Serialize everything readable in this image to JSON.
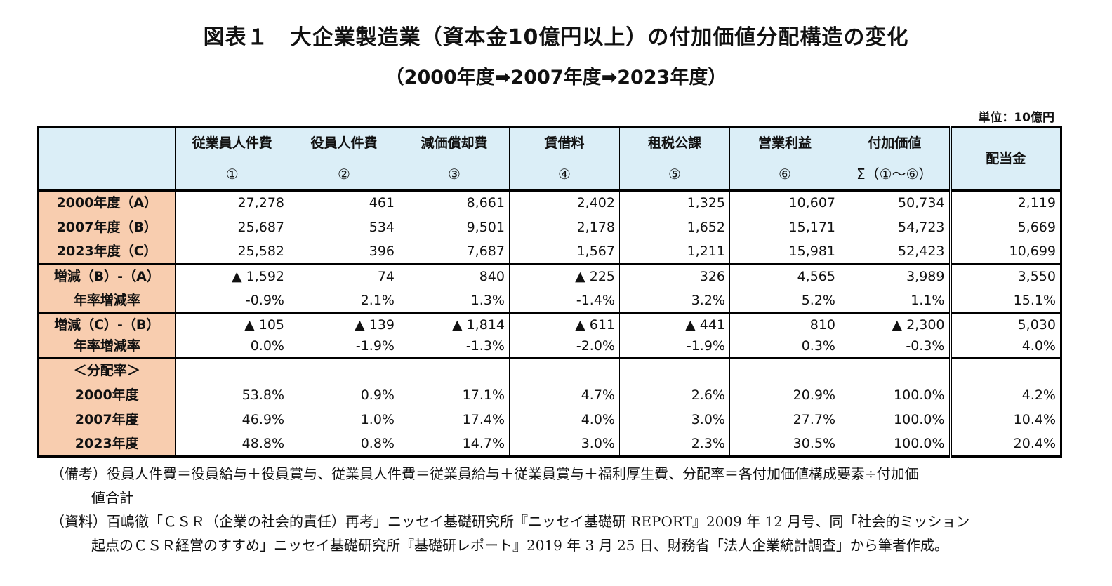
{
  "title": "図表１　大企業製造業（資本金10億円以上）の付加価値分配構造の変化",
  "subtitle": "（2000年度➡2007年度➡2023年度）",
  "unit": "単位：10億円",
  "columns": [
    {
      "name": "従業員人件費",
      "sub": "①"
    },
    {
      "name": "役員人件費",
      "sub": "②"
    },
    {
      "name": "減価償却費",
      "sub": "③"
    },
    {
      "name": "賃借料",
      "sub": "④"
    },
    {
      "name": "租税公課",
      "sub": "⑤"
    },
    {
      "name": "営業利益",
      "sub": "⑥"
    },
    {
      "name": "付加価値",
      "sub": "Σ（①～⑥）"
    },
    {
      "name": "配当金",
      "sub": ""
    }
  ],
  "rows": [
    {
      "label": "2000年度（A）",
      "values": [
        "27,278",
        "461",
        "8,661",
        "2,402",
        "1,325",
        "10,607",
        "50,734",
        "2,119"
      ]
    },
    {
      "label": "2007年度（B）",
      "values": [
        "25,687",
        "534",
        "9,501",
        "2,178",
        "1,652",
        "15,171",
        "54,723",
        "5,669"
      ]
    },
    {
      "label": "2023年度（C）",
      "values": [
        "25,582",
        "396",
        "7,687",
        "1,567",
        "1,211",
        "15,981",
        "52,423",
        "10,699"
      ]
    },
    {
      "label": "増減（B）-（A）",
      "values": [
        "▲ 1,592",
        "74",
        "840",
        "▲ 225",
        "326",
        "4,565",
        "3,989",
        "3,550"
      ]
    },
    {
      "label": "年率増減率",
      "values": [
        "-0.9%",
        "2.1%",
        "1.3%",
        "-1.4%",
        "3.2%",
        "5.2%",
        "1.1%",
        "15.1%"
      ]
    },
    {
      "label": "増減（C）-（B）",
      "values": [
        "▲ 105",
        "▲ 139",
        "▲ 1,814",
        "▲ 611",
        "▲ 441",
        "810",
        "▲ 2,300",
        "5,030"
      ]
    },
    {
      "label": "年率増減率",
      "values": [
        "0.0%",
        "-1.9%",
        "-1.3%",
        "-2.0%",
        "-1.9%",
        "0.3%",
        "-0.3%",
        "4.0%"
      ]
    },
    {
      "label": "＜分配率＞",
      "values": [
        "",
        "",
        "",
        "",
        "",
        "",
        "",
        ""
      ]
    },
    {
      "label": "2000年度",
      "values": [
        "53.8%",
        "0.9%",
        "17.1%",
        "4.7%",
        "2.6%",
        "20.9%",
        "100.0%",
        "4.2%"
      ]
    },
    {
      "label": "2007年度",
      "values": [
        "46.9%",
        "1.0%",
        "17.4%",
        "4.0%",
        "3.0%",
        "27.7%",
        "100.0%",
        "10.4%"
      ]
    },
    {
      "label": "2023年度",
      "values": [
        "48.8%",
        "0.8%",
        "14.7%",
        "3.0%",
        "2.3%",
        "30.5%",
        "100.0%",
        "20.4%"
      ]
    }
  ],
  "notes": {
    "remarks_line1": "（備考）役員人件費＝役員給与＋役員賞与、従業員人件費＝従業員給与＋従業員賞与＋福利厚生費、分配率＝各付加価値構成要素÷付加価",
    "remarks_line2": "値合計",
    "source_line1": "（資料）百嶋徹「ＣＳＲ（企業の社会的責任）再考」ニッセイ基礎研究所『ニッセイ基礎研 REPORT』2009 年 12 月号、同「社会的ミッション",
    "source_line2": "起点のＣＳＲ経営のすすめ」ニッセイ基礎研究所『基礎研レポート』2019 年 3 月 25 日、財務省「法人企業統計調査」から筆者作成。"
  },
  "colors": {
    "header_bg": "#dbeef7",
    "label_bg": "#f8cdaf"
  }
}
